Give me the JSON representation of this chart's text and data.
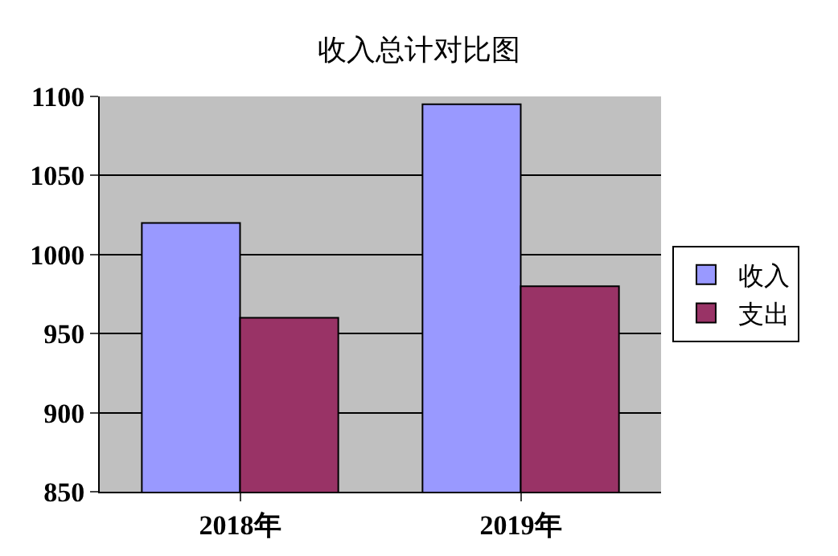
{
  "chart_data": {
    "type": "bar",
    "title": "收入总计对比图",
    "categories": [
      "2018年",
      "2019年"
    ],
    "series": [
      {
        "name": "收入",
        "color": "#9999ff",
        "values": [
          1020,
          1095
        ]
      },
      {
        "name": "支出",
        "color": "#993366",
        "values": [
          960,
          980
        ]
      }
    ],
    "ylim": [
      850,
      1100
    ],
    "yticks": [
      850,
      900,
      950,
      1000,
      1050,
      1100
    ],
    "grid": "y",
    "legend": "right"
  }
}
